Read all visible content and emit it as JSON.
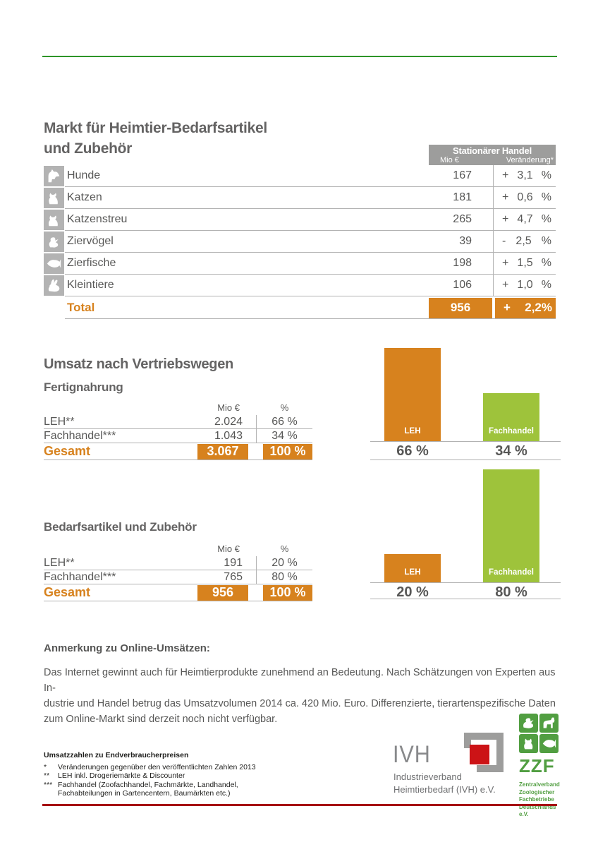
{
  "page": {
    "title_lines": [
      "Markt für Heimtier-Bedarfsartikel",
      "und Zubehör"
    ]
  },
  "market_table": {
    "header": {
      "title": "Stationärer Handel",
      "col_mio": "Mio €",
      "col_change": "Veränderung*"
    },
    "rows": [
      {
        "icon": "dog-icon",
        "label": "Hunde",
        "mio": "167",
        "sign": "+",
        "change": "3,1",
        "unit": "%"
      },
      {
        "icon": "cat-icon",
        "label": "Katzen",
        "mio": "181",
        "sign": "+",
        "change": "0,6",
        "unit": "%"
      },
      {
        "icon": "cat-litter-icon",
        "label": "Katzenstreu",
        "mio": "265",
        "sign": "+",
        "change": "4,7",
        "unit": "%"
      },
      {
        "icon": "bird-icon",
        "label": "Ziervögel",
        "mio": "39",
        "sign": "-",
        "change": "2,5",
        "unit": "%"
      },
      {
        "icon": "fish-icon",
        "label": "Zierfische",
        "mio": "198",
        "sign": "+",
        "change": "1,5",
        "unit": "%"
      },
      {
        "icon": "rabbit-icon",
        "label": "Kleintiere",
        "mio": "106",
        "sign": "+",
        "change": "1,0",
        "unit": "%"
      }
    ],
    "total": {
      "label": "Total",
      "mio": "956",
      "sign": "+",
      "change": "2,2%"
    }
  },
  "distribution": {
    "heading": "Umsatz nach Vertriebswegen",
    "sections": [
      {
        "title": "Fertignahrung",
        "col_mio": "Mio €",
        "col_pct": "%",
        "rows": [
          {
            "label": "LEH**",
            "mio": "2.024",
            "pct": "66 %"
          },
          {
            "label": "Fachhandel***",
            "mio": "1.043",
            "pct": "34 %"
          }
        ],
        "total": {
          "label": "Gesamt",
          "mio": "3.067",
          "pct": "100 %"
        },
        "chart": {
          "bars": [
            {
              "label": "LEH",
              "value": 66,
              "pct_label": "66 %",
              "color": "orange"
            },
            {
              "label": "Fachhandel",
              "value": 34,
              "pct_label": "34 %",
              "color": "green"
            }
          ]
        }
      },
      {
        "title": "Bedarfsartikel und Zubehör",
        "col_mio": "Mio €",
        "col_pct": "%",
        "rows": [
          {
            "label": "LEH**",
            "mio": "191",
            "pct": "20 %"
          },
          {
            "label": "Fachhandel***",
            "mio": "765",
            "pct": "80 %"
          }
        ],
        "total": {
          "label": "Gesamt",
          "mio": "956",
          "pct": "100 %"
        },
        "chart": {
          "bars": [
            {
              "label": "LEH",
              "value": 20,
              "pct_label": "20 %",
              "color": "orange"
            },
            {
              "label": "Fachhandel",
              "value": 80,
              "pct_label": "80 %",
              "color": "green"
            }
          ]
        }
      }
    ]
  },
  "note": {
    "heading": "Anmerkung zu Online-Umsätzen:",
    "lines": [
      "Das Internet gewinnt auch für Heimtierprodukte zunehmend an Bedeutung. Nach Schätzungen von Experten aus In-",
      "dustrie und Handel betrug das Umsatzvolumen 2014 ca. 420 Mio. Euro. Differenzierte, tierartenspezifische Daten",
      "zum Online-Markt sind derzeit noch nicht verfügbar."
    ]
  },
  "footnotes": {
    "title": "Umsatzzahlen zu Endverbraucherpreisen",
    "items": [
      {
        "marker": "*",
        "text": "Veränderungen gegenüber den veröffentlichten Zahlen 2013"
      },
      {
        "marker": "**",
        "text": "LEH inkl. Drogeriemärkte & Discounter"
      },
      {
        "marker": "***",
        "text": "Fachhandel (Zoofachhandel, Fachmärkte, Landhandel,"
      },
      {
        "marker": "",
        "text": "Fachabteilungen in Gartencentern, Baumärkten etc.)"
      }
    ]
  },
  "logos": {
    "ivh": {
      "name": "IVH",
      "subtitle_lines": [
        "Industrieverband",
        "Heimtierbedarf (IVH) e.V."
      ]
    },
    "zzf": {
      "name": "ZZF",
      "subtitle_lines": [
        "Zentralverband",
        "Zoologischer",
        "Fachbetriebe",
        "Deutschlands e.V."
      ]
    }
  },
  "colors": {
    "orange": "#D7821E",
    "green": "#9EC33B",
    "header_gray": "#9D9D9C",
    "icon_gray": "#B3B3B3",
    "rule_green": "#2E9428",
    "rule_red": "#A61113",
    "zzf_green": "#519E41",
    "ivh_red": "#CC1316",
    "text_gray": "#575756"
  },
  "chart_data": [
    {
      "type": "table",
      "title": "Markt für Heimtier-Bedarfsartikel und Zubehör (Stationärer Handel)",
      "columns": [
        "Segment",
        "Mio €",
        "Veränderung* %"
      ],
      "rows": [
        [
          "Hunde",
          167,
          "+3,1 %"
        ],
        [
          "Katzen",
          181,
          "+0,6 %"
        ],
        [
          "Katzenstreu",
          265,
          "+4,7 %"
        ],
        [
          "Ziervögel",
          39,
          "-2,5 %"
        ],
        [
          "Zierfische",
          198,
          "+1,5 %"
        ],
        [
          "Kleintiere",
          106,
          "+1,0 %"
        ],
        [
          "Total",
          956,
          "+2,2 %"
        ]
      ]
    },
    {
      "type": "bar",
      "title": "Umsatz nach Vertriebswegen – Fertignahrung",
      "categories": [
        "LEH",
        "Fachhandel"
      ],
      "values": [
        66,
        34
      ],
      "unit": "%",
      "mio_values": [
        2024,
        1043
      ],
      "total_mio": 3067,
      "ylim": [
        0,
        70
      ],
      "colors": [
        "#D7821E",
        "#9EC33B"
      ]
    },
    {
      "type": "bar",
      "title": "Umsatz nach Vertriebswegen – Bedarfsartikel und Zubehör",
      "categories": [
        "LEH",
        "Fachhandel"
      ],
      "values": [
        20,
        80
      ],
      "unit": "%",
      "mio_values": [
        191,
        765
      ],
      "total_mio": 956,
      "ylim": [
        0,
        83
      ],
      "colors": [
        "#D7821E",
        "#9EC33B"
      ]
    }
  ]
}
